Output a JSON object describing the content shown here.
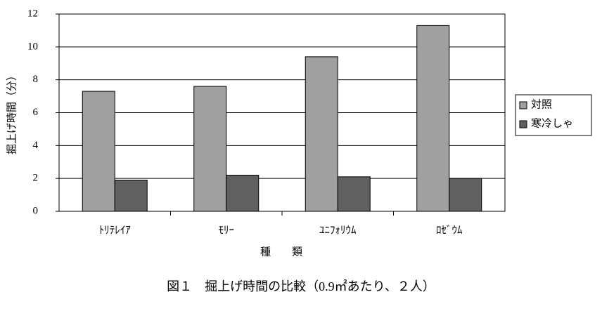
{
  "chart_data": {
    "type": "bar",
    "title": "図１　掘上げ時間の比較（0.9㎡あたり、２人）",
    "y_label": "掘上げ時間（分）",
    "x_label": "種　　類",
    "categories": [
      "ﾄﾘﾃﾚｲｱ",
      "ﾓﾘｰ",
      "ﾕﾆﾌｫﾘｳﾑ",
      "ﾛｾﾞｳﾑ"
    ],
    "series": [
      {
        "name": "対照",
        "color": "#a0a0a0",
        "values": [
          7.3,
          7.6,
          9.4,
          11.3
        ]
      },
      {
        "name": "寒冷しゃ",
        "color": "#606060",
        "values": [
          1.9,
          2.2,
          2.1,
          2.0
        ]
      }
    ],
    "ylim": [
      0,
      12
    ],
    "yticks": [
      0,
      2,
      4,
      6,
      8,
      10,
      12
    ],
    "grid": true,
    "legend": "right"
  }
}
